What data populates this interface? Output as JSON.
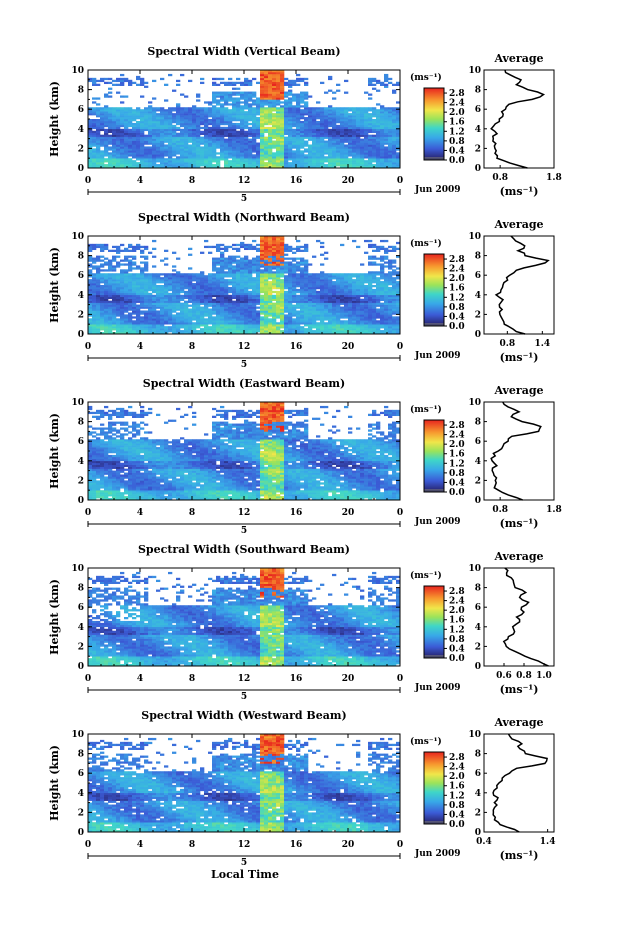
{
  "figure": {
    "xlabel": "Local Time",
    "date_label": "Jun 2009",
    "day_label": "5",
    "units_label": "(ms⁻¹)",
    "avg_title": "Average",
    "ylabel": "Height (km)"
  },
  "chart_data": [
    {
      "type": "heatmap",
      "title": "Spectral Width (Vertical Beam)",
      "xlabel": "Local Time",
      "ylabel": "Height (km)",
      "xlim": [
        0,
        24
      ],
      "ylim": [
        0,
        10
      ],
      "x_ticks": [
        "0",
        "4",
        "8",
        "12",
        "16",
        "20",
        "0"
      ],
      "y_ticks": [
        "0",
        "2",
        "4",
        "6",
        "8",
        "10"
      ],
      "colorbar": {
        "label": "(ms⁻¹)",
        "min": 0.0,
        "max": 3.0,
        "ticks": [
          "0.0",
          "0.4",
          "0.8",
          "1.2",
          "1.6",
          "2.0",
          "2.4",
          "2.8"
        ]
      },
      "average_profile": {
        "title": "Average",
        "xlabel": "(ms⁻¹)",
        "xlim": [
          0.5,
          1.8
        ],
        "x_ticks": [
          "0.8",
          "1.8"
        ],
        "height": [
          0,
          0.5,
          1,
          1.5,
          2,
          2.5,
          3,
          3.5,
          4,
          4.5,
          5,
          5.5,
          6,
          6.5,
          7,
          7.5,
          8,
          8.5,
          9,
          9.5,
          10
        ],
        "values": [
          1.3,
          1.0,
          0.75,
          0.72,
          0.7,
          0.72,
          0.68,
          0.75,
          0.65,
          0.72,
          0.78,
          0.85,
          0.9,
          0.95,
          1.4,
          1.6,
          1.3,
          1.1,
          1.2,
          1.0,
          0.9
        ]
      }
    },
    {
      "type": "heatmap",
      "title": "Spectral Width (Northward Beam)",
      "xlabel": "Local Time",
      "ylabel": "Height (km)",
      "xlim": [
        0,
        24
      ],
      "ylim": [
        0,
        10
      ],
      "x_ticks": [
        "0",
        "4",
        "8",
        "12",
        "16",
        "20",
        "0"
      ],
      "y_ticks": [
        "0",
        "2",
        "4",
        "6",
        "8",
        "10"
      ],
      "colorbar": {
        "label": "(ms⁻¹)",
        "min": 0.0,
        "max": 3.0,
        "ticks": [
          "0.0",
          "0.4",
          "0.8",
          "1.2",
          "1.6",
          "2.0",
          "2.4",
          "2.8"
        ]
      },
      "average_profile": {
        "title": "Average",
        "xlabel": "(ms⁻¹)",
        "xlim": [
          0.4,
          1.6
        ],
        "x_ticks": [
          "0.8",
          "1.4"
        ],
        "height": [
          0,
          0.5,
          1,
          1.5,
          2,
          2.5,
          3,
          3.5,
          4,
          4.5,
          5,
          5.5,
          6,
          6.5,
          7,
          7.5,
          8,
          8.5,
          9,
          9.5,
          10
        ],
        "values": [
          1.1,
          0.9,
          0.75,
          0.7,
          0.68,
          0.7,
          0.65,
          0.72,
          0.62,
          0.68,
          0.72,
          0.8,
          0.85,
          0.95,
          1.3,
          1.5,
          1.1,
          1.0,
          1.1,
          0.95,
          0.85
        ]
      }
    },
    {
      "type": "heatmap",
      "title": "Spectral Width (Eastward Beam)",
      "xlabel": "Local Time",
      "ylabel": "Height (km)",
      "xlim": [
        0,
        24
      ],
      "ylim": [
        0,
        10
      ],
      "x_ticks": [
        "0",
        "4",
        "8",
        "12",
        "16",
        "20",
        "0"
      ],
      "y_ticks": [
        "0",
        "2",
        "4",
        "6",
        "8",
        "10"
      ],
      "colorbar": {
        "label": "(ms⁻¹)",
        "min": 0.0,
        "max": 3.0,
        "ticks": [
          "0.0",
          "0.4",
          "0.8",
          "1.2",
          "1.6",
          "2.0",
          "2.4",
          "2.8"
        ]
      },
      "average_profile": {
        "title": "Average",
        "xlabel": "(ms⁻¹)",
        "xlim": [
          0.5,
          1.8
        ],
        "x_ticks": [
          "0.8",
          "1.8"
        ],
        "height": [
          0,
          0.5,
          1,
          1.5,
          2,
          2.5,
          3,
          3.5,
          4,
          4.5,
          5,
          5.5,
          6,
          6.5,
          7,
          7.5,
          8,
          8.5,
          9,
          9.5,
          10
        ],
        "values": [
          1.2,
          0.95,
          0.75,
          0.72,
          0.7,
          0.7,
          0.66,
          0.72,
          0.64,
          0.7,
          0.75,
          0.85,
          0.95,
          1.0,
          1.5,
          1.55,
          1.2,
          1.0,
          1.15,
          0.95,
          0.85
        ]
      }
    },
    {
      "type": "heatmap",
      "title": "Spectral Width (Southward Beam)",
      "xlabel": "Local Time",
      "ylabel": "Height (km)",
      "xlim": [
        0,
        24
      ],
      "ylim": [
        0,
        10
      ],
      "x_ticks": [
        "0",
        "4",
        "8",
        "12",
        "16",
        "20",
        "0"
      ],
      "y_ticks": [
        "0",
        "2",
        "4",
        "6",
        "8",
        "10"
      ],
      "colorbar": {
        "label": "(ms⁻¹)",
        "min": 0.0,
        "max": 3.0,
        "ticks": [
          "0.0",
          "0.4",
          "0.8",
          "1.2",
          "1.6",
          "2.0",
          "2.4",
          "2.8"
        ]
      },
      "average_profile": {
        "title": "Average",
        "xlabel": "(ms⁻¹)",
        "xlim": [
          0.4,
          1.1
        ],
        "x_ticks": [
          "0.6",
          "0.8",
          "1.0"
        ],
        "height": [
          0,
          0.5,
          1,
          1.5,
          2,
          2.5,
          3,
          3.5,
          4,
          4.5,
          5,
          5.5,
          6,
          6.5,
          7,
          7.5,
          8,
          8.5,
          9,
          9.5,
          10
        ],
        "values": [
          1.05,
          0.95,
          0.8,
          0.7,
          0.62,
          0.6,
          0.65,
          0.7,
          0.68,
          0.75,
          0.72,
          0.8,
          0.78,
          0.85,
          0.75,
          0.82,
          0.72,
          0.7,
          0.68,
          0.62,
          0.6
        ]
      }
    },
    {
      "type": "heatmap",
      "title": "Spectral Width (Westward Beam)",
      "xlabel": "Local Time",
      "ylabel": "Height (km)",
      "xlim": [
        0,
        24
      ],
      "ylim": [
        0,
        10
      ],
      "x_ticks": [
        "0",
        "4",
        "8",
        "12",
        "16",
        "20",
        "0"
      ],
      "y_ticks": [
        "0",
        "2",
        "4",
        "6",
        "8",
        "10"
      ],
      "colorbar": {
        "label": "(ms⁻¹)",
        "min": 0.0,
        "max": 3.0,
        "ticks": [
          "0.0",
          "0.4",
          "0.8",
          "1.2",
          "1.6",
          "2.0",
          "2.4",
          "2.8"
        ]
      },
      "average_profile": {
        "title": "Average",
        "xlabel": "(ms⁻¹)",
        "xlim": [
          0.4,
          1.5
        ],
        "x_ticks": [
          "0.4",
          "1.4"
        ],
        "height": [
          0,
          0.5,
          1,
          1.5,
          2,
          2.5,
          3,
          3.5,
          4,
          4.5,
          5,
          5.5,
          6,
          6.5,
          7,
          7.5,
          8,
          8.5,
          9,
          9.5,
          10
        ],
        "values": [
          0.95,
          0.75,
          0.62,
          0.58,
          0.55,
          0.58,
          0.55,
          0.62,
          0.55,
          0.6,
          0.62,
          0.7,
          0.8,
          0.9,
          1.35,
          1.4,
          1.05,
          0.95,
          1.0,
          0.85,
          0.8
        ]
      }
    }
  ]
}
